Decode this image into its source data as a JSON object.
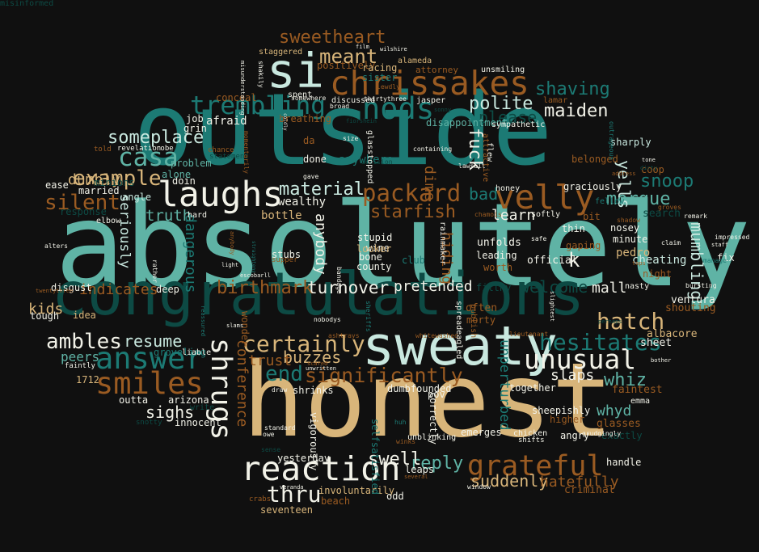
{
  "colors": {
    "background": "#101010",
    "palette": [
      "#5fb3a5",
      "#1c7a74",
      "#0d4a44",
      "#d8b57a",
      "#9a5b22",
      "#c9e8df",
      "#f2f2e8"
    ]
  },
  "words": [
    {
      "text": "absolutely",
      "color": "#5fb3a5"
    },
    {
      "text": "outside",
      "color": "#1c7a74"
    },
    {
      "text": "honest",
      "color": "#d8b57a"
    },
    {
      "text": "congratulations",
      "color": "#0d4a44"
    },
    {
      "text": "sweaty",
      "color": "#c9e8df"
    },
    {
      "text": "si",
      "color": "#c9e8df"
    },
    {
      "text": "chrissakes",
      "color": "#9a5b22"
    },
    {
      "text": "nods",
      "color": "#1c7a74"
    },
    {
      "text": "trembling",
      "color": "#1c7a74"
    },
    {
      "text": "laughs",
      "color": "#f2f2e8"
    },
    {
      "text": "velly",
      "color": "#9a5b22"
    },
    {
      "text": "reaction",
      "color": "#f2f2e8"
    },
    {
      "text": "answer",
      "color": "#1c7a74"
    },
    {
      "text": "smiles",
      "color": "#9a5b22"
    },
    {
      "text": "shrugs",
      "color": "#f2f2e8"
    },
    {
      "text": "unusual",
      "color": "#f2f2e8"
    },
    {
      "text": "grateful",
      "color": "#9a5b22"
    },
    {
      "text": "packard",
      "color": "#9a5b22"
    },
    {
      "text": "casa",
      "color": "#5fb3a5"
    },
    {
      "text": "sweetheart",
      "color": "#9a5b22"
    },
    {
      "text": "meant",
      "color": "#d8b57a"
    },
    {
      "text": "polite",
      "color": "#c9e8df"
    },
    {
      "text": "maiden",
      "color": "#f2f2e8"
    },
    {
      "text": "shaving",
      "color": "#1c7a74"
    },
    {
      "text": "please",
      "color": "#0d4a44"
    },
    {
      "text": "hesitates",
      "color": "#1c7a74"
    },
    {
      "text": "certainly",
      "color": "#d8b57a"
    },
    {
      "text": "significantly",
      "color": "#9a5b22"
    },
    {
      "text": "end",
      "color": "#1c7a74"
    },
    {
      "text": "silent",
      "color": "#9a5b22"
    },
    {
      "text": "example",
      "color": "#d8b57a"
    },
    {
      "text": "someplace",
      "color": "#c9e8df"
    },
    {
      "text": "ambles",
      "color": "#f2f2e8"
    },
    {
      "text": "resume",
      "color": "#c9e8df"
    },
    {
      "text": "material",
      "color": "#c9e8df"
    },
    {
      "text": "starfish",
      "color": "#9a5b22"
    },
    {
      "text": "hatch",
      "color": "#d8b57a"
    },
    {
      "text": "morgue",
      "color": "#5fb3a5"
    },
    {
      "text": "snoop",
      "color": "#1c7a74"
    },
    {
      "text": "yells",
      "color": "#c9e8df"
    },
    {
      "text": "mumbling",
      "color": "#c9e8df"
    },
    {
      "text": "birthmark",
      "color": "#9a5b22"
    },
    {
      "text": "turnover",
      "color": "#f2f2e8"
    },
    {
      "text": "pretended",
      "color": "#f2f2e8"
    },
    {
      "text": "mall",
      "color": "#f2f2e8"
    },
    {
      "text": "welcome",
      "color": "#0d4a44"
    },
    {
      "text": "learn",
      "color": "#f2f2e8"
    },
    {
      "text": "buzzes",
      "color": "#d8b57a"
    },
    {
      "text": "thru",
      "color": "#f2f2e8"
    },
    {
      "text": "reply",
      "color": "#5fb3a5"
    },
    {
      "text": "swell",
      "color": "#f2f2e8"
    },
    {
      "text": "suddenly",
      "color": "#d8b57a"
    },
    {
      "text": "hatefully",
      "color": "#9a5b22"
    },
    {
      "text": "whiz",
      "color": "#5fb3a5"
    },
    {
      "text": "whyd",
      "color": "#5fb3a5"
    },
    {
      "text": "slaps",
      "color": "#f2f2e8"
    },
    {
      "text": "truth",
      "color": "#5fb3a5"
    },
    {
      "text": "dumbly",
      "color": "#d8b57a"
    },
    {
      "text": "indicates",
      "color": "#9a5b22"
    },
    {
      "text": "kids",
      "color": "#d8b57a"
    },
    {
      "text": "sighs",
      "color": "#f2f2e8"
    },
    {
      "text": "peers",
      "color": "#5fb3a5"
    },
    {
      "text": "trust",
      "color": "#9a5b22"
    },
    {
      "text": "bad",
      "color": "#1c7a74"
    },
    {
      "text": "dime",
      "color": "#9a5b22"
    },
    {
      "text": "fuck",
      "color": "#f2f2e8"
    },
    {
      "text": "hiding",
      "color": "#9a5b22"
    },
    {
      "text": "k",
      "color": "#f2f2e8"
    },
    {
      "text": "afraid",
      "color": "#f2f2e8"
    },
    {
      "text": "anywhere",
      "color": "#1c7a74"
    },
    {
      "text": "dangerous",
      "color": "#1c7a74"
    },
    {
      "text": "seriously",
      "color": "#c9e8df"
    },
    {
      "text": "conference",
      "color": "#9a5b22"
    },
    {
      "text": "anybody",
      "color": "#f2f2e8"
    },
    {
      "text": "bottle",
      "color": "#d8b57a"
    },
    {
      "text": "wealthy",
      "color": "#f2f2e8"
    },
    {
      "text": "unperturbed",
      "color": "#1c7a74"
    },
    {
      "text": "cheating",
      "color": "#c9e8df"
    },
    {
      "text": "pedro",
      "color": "#d8b57a"
    },
    {
      "text": "ventura",
      "color": "#f2f2e8"
    },
    {
      "text": "shouting",
      "color": "#9a5b22"
    },
    {
      "text": "albacore",
      "color": "#d8b57a"
    },
    {
      "text": "sheet",
      "color": "#f2f2e8"
    },
    {
      "text": "faintest",
      "color": "#9a5b22"
    },
    {
      "text": "emma",
      "color": "#f2f2e8"
    },
    {
      "text": "glasses",
      "color": "#9a5b22"
    },
    {
      "text": "handle",
      "color": "#f2f2e8"
    },
    {
      "text": "exactly",
      "color": "#0d4a44"
    },
    {
      "text": "criminal",
      "color": "#9a5b22"
    },
    {
      "text": "graciously",
      "color": "#f2f2e8"
    },
    {
      "text": "belonged",
      "color": "#9a5b22"
    },
    {
      "text": "sharply",
      "color": "#c9e8df"
    },
    {
      "text": "coop",
      "color": "#9a5b22"
    },
    {
      "text": "search",
      "color": "#0d4a44"
    },
    {
      "text": "night",
      "color": "#9a5b22"
    },
    {
      "text": "minute",
      "color": "#f2f2e8"
    },
    {
      "text": "nosey",
      "color": "#f2f2e8"
    },
    {
      "text": "gaping",
      "color": "#9a5b22"
    },
    {
      "text": "thin",
      "color": "#f2f2e8"
    },
    {
      "text": "bit",
      "color": "#9a5b22"
    },
    {
      "text": "fix",
      "color": "#f2f2e8"
    },
    {
      "text": "official",
      "color": "#f2f2e8"
    },
    {
      "text": "unfolds",
      "color": "#f2f2e8"
    },
    {
      "text": "leading",
      "color": "#f2f2e8"
    },
    {
      "text": "worth",
      "color": "#9a5b22"
    },
    {
      "text": "often",
      "color": "#9a5b22"
    },
    {
      "text": "morty",
      "color": "#9a5b22"
    },
    {
      "text": "filthy",
      "color": "#0d4a44"
    },
    {
      "text": "wine",
      "color": "#f2f2e8"
    },
    {
      "text": "stupid",
      "color": "#f2f2e8"
    },
    {
      "text": "looker",
      "color": "#d8b57a"
    },
    {
      "text": "bone",
      "color": "#f2f2e8"
    },
    {
      "text": "county",
      "color": "#f2f2e8"
    },
    {
      "text": "club",
      "color": "#1c7a74"
    },
    {
      "text": "stubs",
      "color": "#f2f2e8"
    },
    {
      "text": "supper",
      "color": "#9a5b22"
    },
    {
      "text": "deep",
      "color": "#f2f2e8"
    },
    {
      "text": "disgust",
      "color": "#f2f2e8"
    },
    {
      "text": "tough",
      "color": "#f2f2e8"
    },
    {
      "text": "idea",
      "color": "#d8b57a"
    },
    {
      "text": "wonder",
      "color": "#9a5b22"
    },
    {
      "text": "groveling",
      "color": "#1c7a74"
    },
    {
      "text": "liable",
      "color": "#f2f2e8"
    },
    {
      "text": "arizona",
      "color": "#f2f2e8"
    },
    {
      "text": "outta",
      "color": "#f2f2e8"
    },
    {
      "text": "innocent",
      "color": "#f2f2e8"
    },
    {
      "text": "write",
      "color": "#0d4a44"
    },
    {
      "text": "faintly",
      "color": "#f2f2e8"
    },
    {
      "text": "1712",
      "color": "#d8b57a"
    },
    {
      "text": "snotty",
      "color": "#0d4a44"
    },
    {
      "text": "yesterday",
      "color": "#f2f2e8"
    },
    {
      "text": "vigorously",
      "color": "#f2f2e8"
    },
    {
      "text": "involuntarily",
      "color": "#d8b57a"
    },
    {
      "text": "seventeen",
      "color": "#d8b57a"
    },
    {
      "text": "beach",
      "color": "#9a5b22"
    },
    {
      "text": "odd",
      "color": "#f2f2e8"
    },
    {
      "text": "crabs",
      "color": "#9a5b22"
    },
    {
      "text": "shrinks",
      "color": "#f2f2e8"
    },
    {
      "text": "draw",
      "color": "#f2f2e8"
    },
    {
      "text": "dumbfounded",
      "color": "#f2f2e8"
    },
    {
      "text": "pov",
      "color": "#f2f2e8"
    },
    {
      "text": "emerges",
      "color": "#f2f2e8"
    },
    {
      "text": "correctly",
      "color": "#f2f2e8"
    },
    {
      "text": "selfsatisfied",
      "color": "#1c7a74"
    },
    {
      "text": "leaps",
      "color": "#f2f2e8"
    },
    {
      "text": "sheepishly",
      "color": "#f2f2e8"
    },
    {
      "text": "together",
      "color": "#f2f2e8"
    },
    {
      "text": "higher",
      "color": "#9a5b22"
    },
    {
      "text": "angry",
      "color": "#f2f2e8"
    },
    {
      "text": "chicken",
      "color": "#f2f2e8"
    },
    {
      "text": "shifts",
      "color": "#f2f2e8"
    },
    {
      "text": "window",
      "color": "#f2f2e8"
    },
    {
      "text": "response",
      "color": "#0d4a44"
    },
    {
      "text": "ease",
      "color": "#f2f2e8"
    },
    {
      "text": "angle",
      "color": "#c9e8df"
    },
    {
      "text": "married",
      "color": "#f2f2e8"
    },
    {
      "text": "minions",
      "color": "#0d4a44"
    },
    {
      "text": "alters",
      "color": "#f2f2e8"
    },
    {
      "text": "elbow",
      "color": "#f2f2e8"
    },
    {
      "text": "hard",
      "color": "#f2f2e8"
    },
    {
      "text": "doin",
      "color": "#f2f2e8"
    },
    {
      "text": "alone",
      "color": "#5fb3a5"
    },
    {
      "text": "problem",
      "color": "#5fb3a5"
    },
    {
      "text": "grin",
      "color": "#f2f2e8"
    },
    {
      "text": "job",
      "color": "#f2f2e8"
    },
    {
      "text": "told",
      "color": "#9a5b22"
    },
    {
      "text": "revelation",
      "color": "#f2f2e8"
    },
    {
      "text": "robe",
      "color": "#f2f2e8"
    },
    {
      "text": "statement",
      "color": "#0d4a44"
    },
    {
      "text": "chance",
      "color": "#9a5b22"
    },
    {
      "text": "conceal",
      "color": "#9a5b22"
    },
    {
      "text": "breathing",
      "color": "#9a5b22"
    },
    {
      "text": "staggered",
      "color": "#d8b57a"
    },
    {
      "text": "positively",
      "color": "#9a5b22"
    },
    {
      "text": "racing",
      "color": "#d8b57a"
    },
    {
      "text": "sister",
      "color": "#1c7a74"
    },
    {
      "text": "alameda",
      "color": "#d8b57a"
    },
    {
      "text": "film",
      "color": "#f2f2e8"
    },
    {
      "text": "wilshire",
      "color": "#f2f2e8"
    },
    {
      "text": "attorney",
      "color": "#9a5b22"
    },
    {
      "text": "unsmiling",
      "color": "#f2f2e8"
    },
    {
      "text": "lewdly",
      "color": "#9a5b22"
    },
    {
      "text": "jasper",
      "color": "#f2f2e8"
    },
    {
      "text": "sonny",
      "color": "#0d4a44"
    },
    {
      "text": "lamar",
      "color": "#9a5b22"
    },
    {
      "text": "discussed",
      "color": "#f2f2e8"
    },
    {
      "text": "broad",
      "color": "#f2f2e8"
    },
    {
      "text": "spent",
      "color": "#f2f2e8"
    },
    {
      "text": "somewhere",
      "color": "#f2f2e8"
    },
    {
      "text": "thirtythree",
      "color": "#f2f2e8"
    },
    {
      "text": "fiorshein",
      "color": "#0d4a44"
    },
    {
      "text": "disappointment",
      "color": "#5fb3a5"
    },
    {
      "text": "containing",
      "color": "#f2f2e8"
    },
    {
      "text": "sympathetic",
      "color": "#f2f2e8"
    },
    {
      "text": "da",
      "color": "#9a5b22"
    },
    {
      "text": "size",
      "color": "#f2f2e8"
    },
    {
      "text": "done",
      "color": "#f2f2e8"
    },
    {
      "text": "gave",
      "color": "#f2f2e8"
    },
    {
      "text": "decision",
      "color": "#0d4a44"
    },
    {
      "text": "glasstopped",
      "color": "#f2f2e8"
    },
    {
      "text": "flew",
      "color": "#f2f2e8"
    },
    {
      "text": "lawsuit",
      "color": "#f2f2e8"
    },
    {
      "text": "chamois",
      "color": "#9a5b22"
    },
    {
      "text": "honey",
      "color": "#f2f2e8"
    },
    {
      "text": "safe",
      "color": "#f2f2e8"
    },
    {
      "text": "softly",
      "color": "#f2f2e8"
    },
    {
      "text": "fellow",
      "color": "#1c7a74"
    },
    {
      "text": "shadow",
      "color": "#9a5b22"
    },
    {
      "text": "groves",
      "color": "#9a5b22"
    },
    {
      "text": "remark",
      "color": "#f2f2e8"
    },
    {
      "text": "impressed",
      "color": "#f2f2e8"
    },
    {
      "text": "staff",
      "color": "#f2f2e8"
    },
    {
      "text": "manage",
      "color": "#1c7a74"
    },
    {
      "text": "claim",
      "color": "#f2f2e8"
    },
    {
      "text": "taps",
      "color": "#9a5b22"
    },
    {
      "text": "bursting",
      "color": "#f2f2e8"
    },
    {
      "text": "nasty",
      "color": "#f2f2e8"
    },
    {
      "text": "perhaps",
      "color": "#0d4a44"
    },
    {
      "text": "bother",
      "color": "#f2f2e8"
    },
    {
      "text": "grudgingly",
      "color": "#f2f2e8"
    },
    {
      "text": "ashtrays",
      "color": "#9a5b22"
    },
    {
      "text": "whitewashed",
      "color": "#9a5b22"
    },
    {
      "text": "lieutenant",
      "color": "#9a5b22"
    },
    {
      "text": "sheriffs",
      "color": "#1c7a74"
    },
    {
      "text": "nobodys",
      "color": "#f2f2e8"
    },
    {
      "text": "slams",
      "color": "#f2f2e8"
    },
    {
      "text": "light",
      "color": "#f2f2e8"
    },
    {
      "text": "escobarll",
      "color": "#f2f2e8"
    },
    {
      "text": "rather",
      "color": "#f2f2e8"
    },
    {
      "text": "bandage",
      "color": "#f2f2e8"
    },
    {
      "text": "scared",
      "color": "#9a5b22"
    },
    {
      "text": "unwritten",
      "color": "#f2f2e8"
    },
    {
      "text": "owe",
      "color": "#f2f2e8"
    },
    {
      "text": "standard",
      "color": "#f2f2e8"
    },
    {
      "text": "sense",
      "color": "#0d4a44"
    },
    {
      "text": "veranda",
      "color": "#f2f2e8"
    },
    {
      "text": "unblinking",
      "color": "#f2f2e8"
    },
    {
      "text": "rainmaker",
      "color": "#f2f2e8"
    },
    {
      "text": "spreadeagled",
      "color": "#f2f2e8"
    },
    {
      "text": "publish",
      "color": "#9a5b22"
    },
    {
      "text": "attractive",
      "color": "#9a5b22"
    },
    {
      "text": "address",
      "color": "#9a5b22"
    },
    {
      "text": "tone",
      "color": "#f2f2e8"
    },
    {
      "text": "dirty",
      "color": "#0d4a44"
    },
    {
      "text": "outrageous",
      "color": "#1c7a74"
    },
    {
      "text": "huh",
      "color": "#1c7a74"
    },
    {
      "text": "winks",
      "color": "#9a5b22"
    },
    {
      "text": "several",
      "color": "#9a5b22"
    },
    {
      "text": "anybody",
      "color": "#9a5b22"
    },
    {
      "text": "straightens",
      "color": "#1c7a74"
    },
    {
      "text": "misunderstanding",
      "color": "#f2f2e8"
    },
    {
      "text": "shakily",
      "color": "#f2f2e8"
    },
    {
      "text": "agent",
      "color": "#1c7a74"
    },
    {
      "text": "coldly",
      "color": "#f2f2e8"
    },
    {
      "text": "momentarily",
      "color": "#9a5b22"
    },
    {
      "text": "reassured",
      "color": "#1c7a74"
    },
    {
      "text": "slightest",
      "color": "#f2f2e8"
    },
    {
      "text": "twentythree",
      "color": "#9a5b22"
    },
    {
      "text": "misinformed",
      "color": "#0d4a44"
    }
  ]
}
